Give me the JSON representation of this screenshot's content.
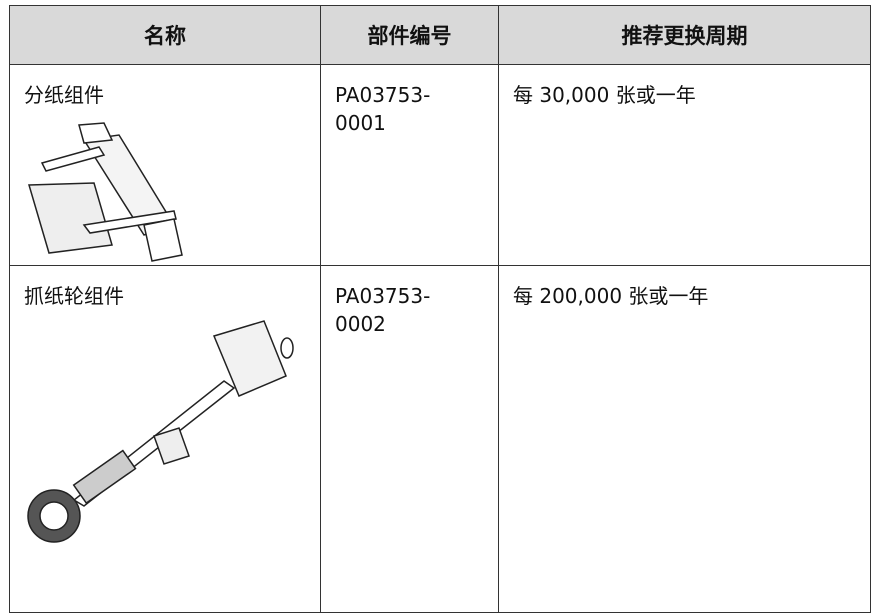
{
  "table": {
    "header": [
      "名称",
      "部件编号",
      "推荐更换周期"
    ],
    "rows": [
      [
        "分纸组件",
        "PA03753-0001",
        "每 30,000 张或一年"
      ],
      [
        "抓纸轮组件",
        "PA03753-0002",
        "每 200,000 张或一年"
      ]
    ]
  }
}
